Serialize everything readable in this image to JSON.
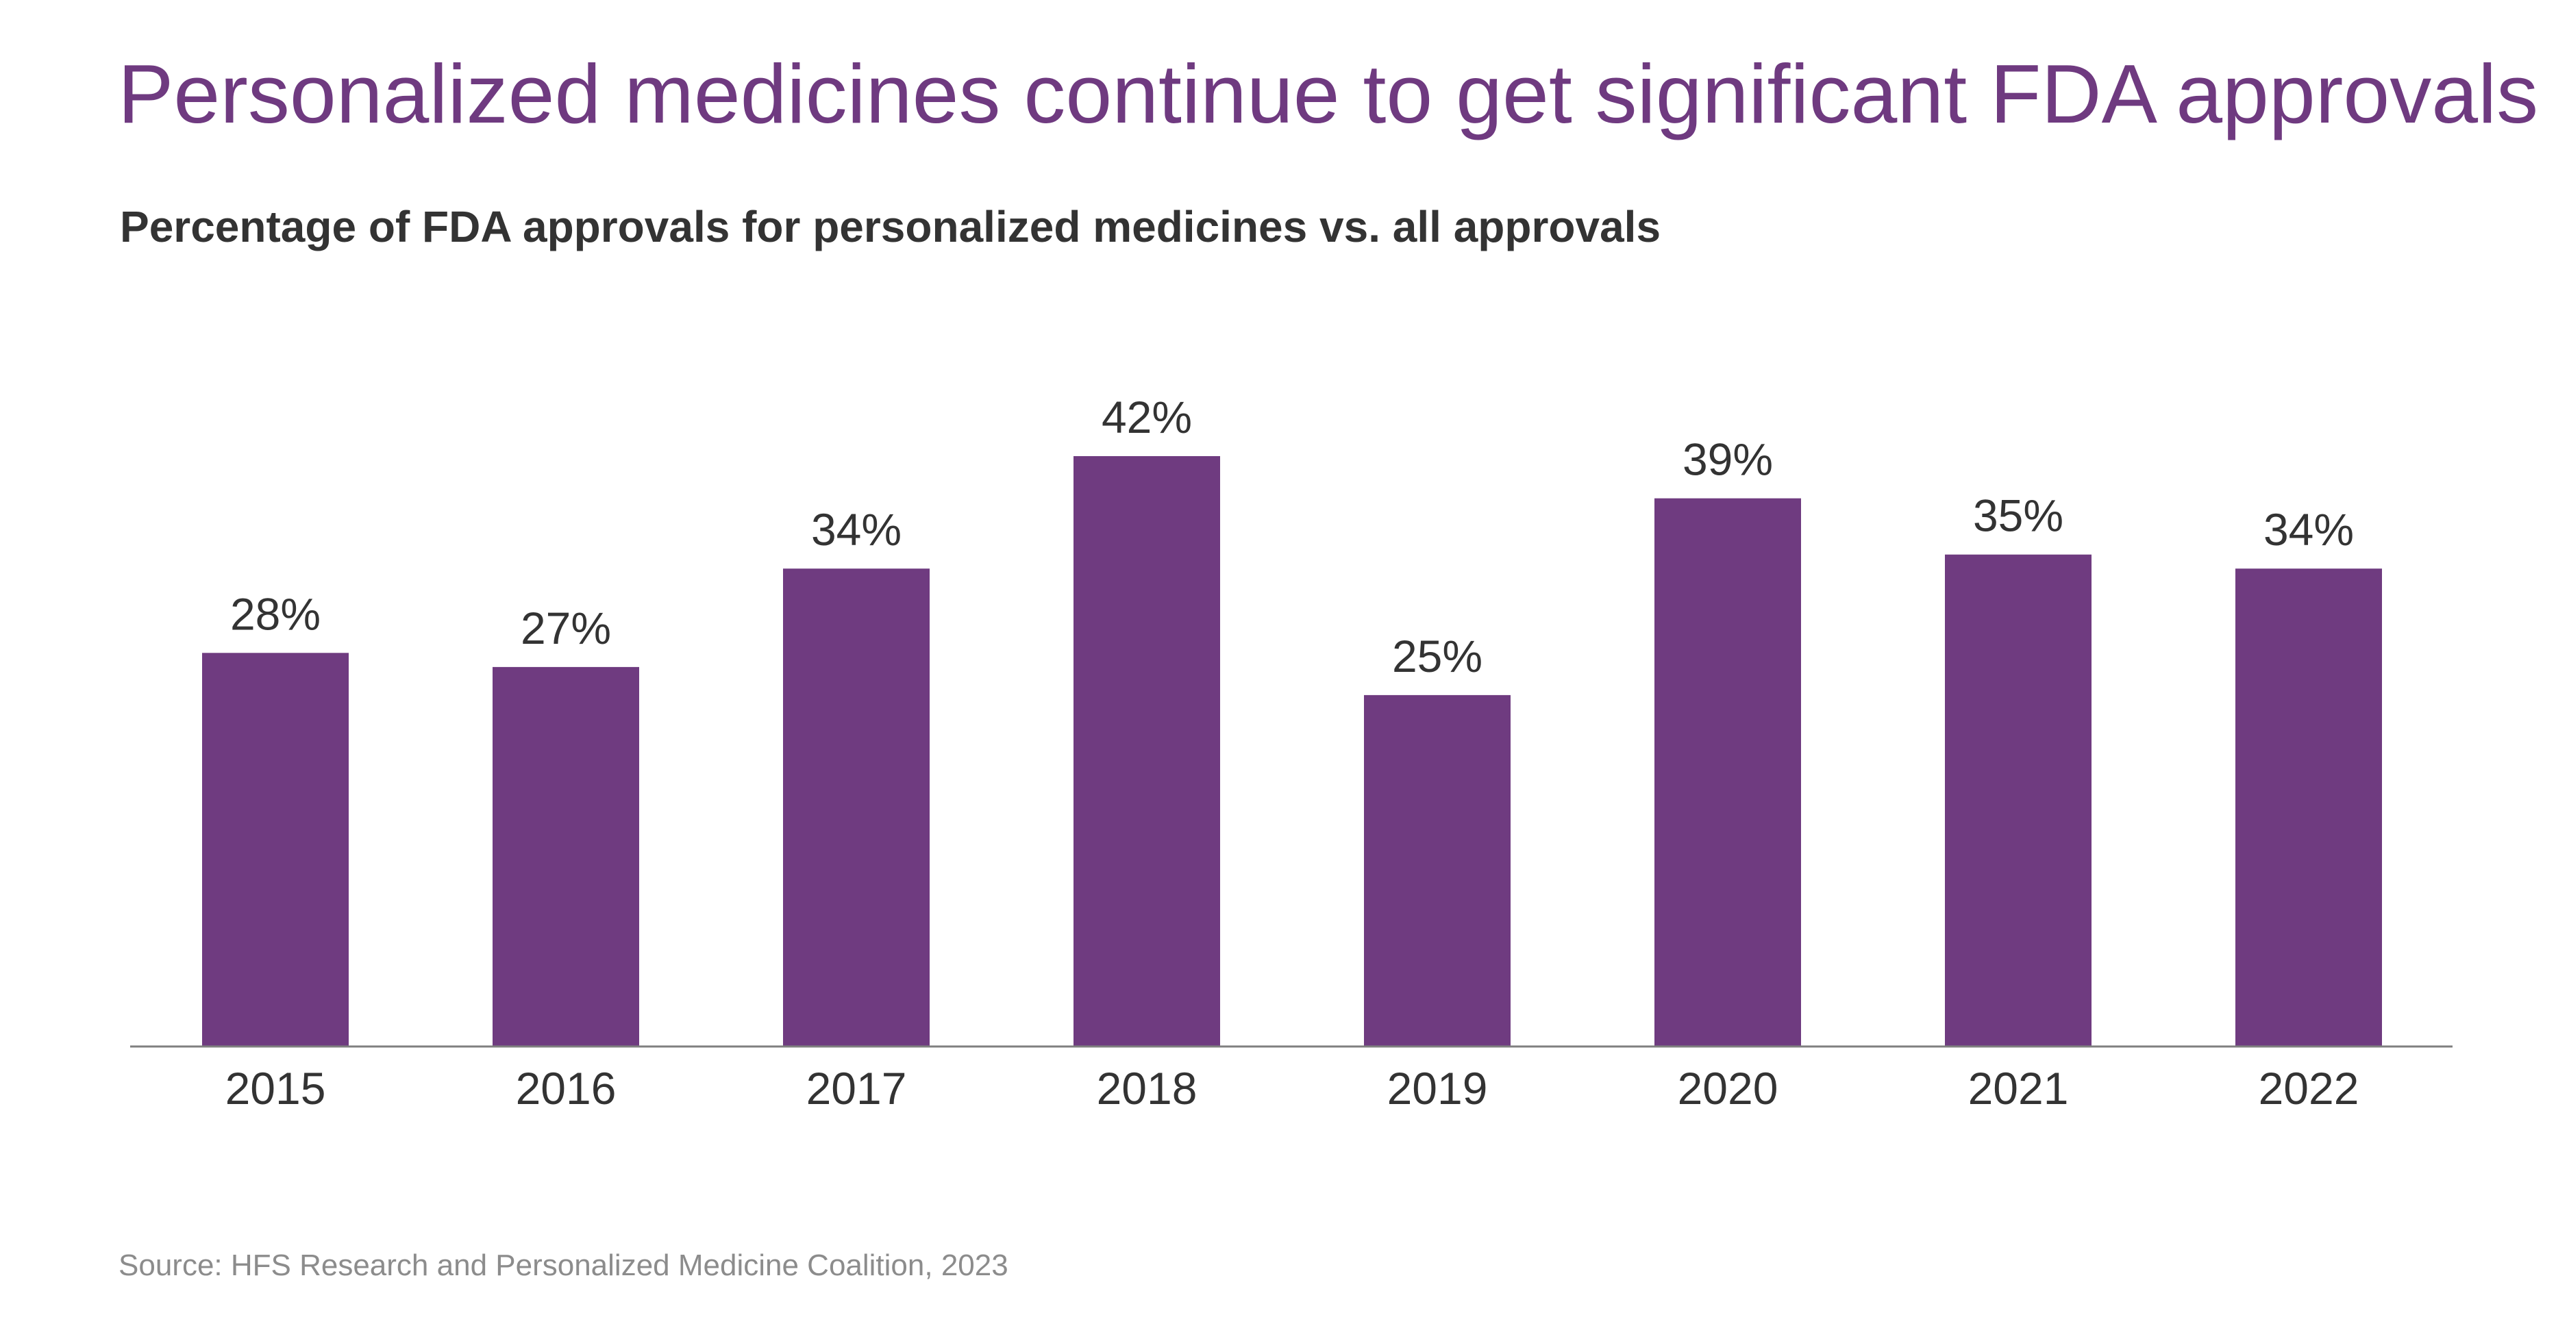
{
  "colors": {
    "title": "#6f3a80",
    "bar": "#6f3b80",
    "text": "#333333",
    "source": "#8c8c8c",
    "axis": "#7f7f7f"
  },
  "header": {
    "title": "Personalized medicines continue to get significant FDA approvals",
    "subtitle": "Percentage of FDA approvals for personalized medicines vs. all approvals"
  },
  "footer": {
    "source": "Source: HFS Research and Personalized Medicine Coalition, 2023"
  },
  "chart_data": {
    "type": "bar",
    "title": "Percentage of FDA approvals for personalized medicines vs. all approvals",
    "xlabel": "",
    "ylabel": "",
    "categories": [
      "2015",
      "2016",
      "2017",
      "2018",
      "2019",
      "2020",
      "2021",
      "2022"
    ],
    "values": [
      28,
      27,
      34,
      42,
      25,
      39,
      35,
      34
    ],
    "value_labels": [
      "28%",
      "27%",
      "34%",
      "42%",
      "25%",
      "39%",
      "35%",
      "34%"
    ],
    "unit": "%",
    "ylim": [
      0,
      42
    ],
    "grid": false,
    "legend": "none"
  }
}
